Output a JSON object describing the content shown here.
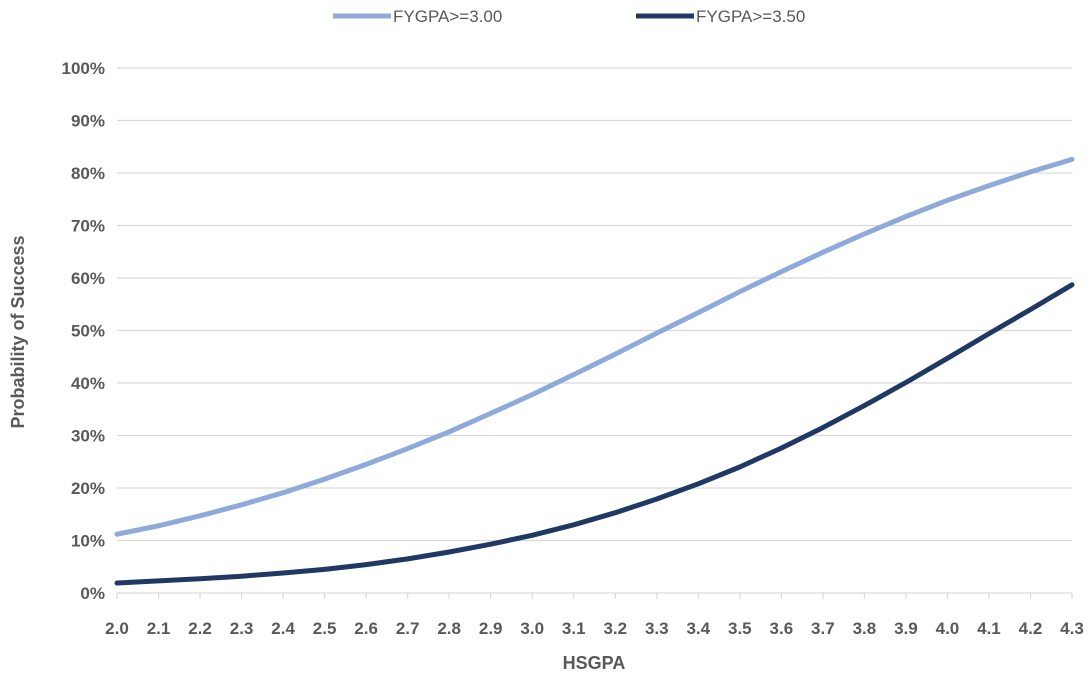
{
  "chart_data": {
    "type": "line",
    "title": "",
    "xlabel": "HSGPA",
    "ylabel": "Probability of Success",
    "xlim": [
      2.0,
      4.3
    ],
    "ylim": [
      0,
      100
    ],
    "x_ticks": [
      "2.0",
      "2.1",
      "2.2",
      "2.3",
      "2.4",
      "2.5",
      "2.6",
      "2.7",
      "2.8",
      "2.9",
      "3.0",
      "3.1",
      "3.2",
      "3.3",
      "3.4",
      "3.5",
      "3.6",
      "3.7",
      "3.8",
      "3.9",
      "4.0",
      "4.1",
      "4.2",
      "4.3"
    ],
    "y_ticks": [
      "0%",
      "10%",
      "20%",
      "30%",
      "40%",
      "50%",
      "60%",
      "70%",
      "80%",
      "90%",
      "100%"
    ],
    "grid": true,
    "legend_position": "top-center",
    "x": [
      2.0,
      2.1,
      2.2,
      2.3,
      2.4,
      2.5,
      2.6,
      2.7,
      2.8,
      2.9,
      3.0,
      3.1,
      3.2,
      3.3,
      3.4,
      3.5,
      3.6,
      3.7,
      3.8,
      3.9,
      4.0,
      4.1,
      4.2,
      4.3
    ],
    "series": [
      {
        "name": "FYGPA>=3.00",
        "color": "#8eaadb",
        "values": [
          11.2,
          12.8,
          14.7,
          16.8,
          19.1,
          21.7,
          24.5,
          27.5,
          30.7,
          34.2,
          37.8,
          41.6,
          45.5,
          49.5,
          53.4,
          57.4,
          61.2,
          64.9,
          68.4,
          71.7,
          74.8,
          77.6,
          80.2,
          82.6
        ]
      },
      {
        "name": "FYGPA>=3.50",
        "color": "#203864",
        "values": [
          1.9,
          2.3,
          2.7,
          3.2,
          3.8,
          4.5,
          5.4,
          6.5,
          7.8,
          9.3,
          11.0,
          13.0,
          15.3,
          17.9,
          20.8,
          24.0,
          27.6,
          31.5,
          35.7,
          40.1,
          44.7,
          49.4,
          54.0,
          58.7
        ]
      }
    ]
  }
}
